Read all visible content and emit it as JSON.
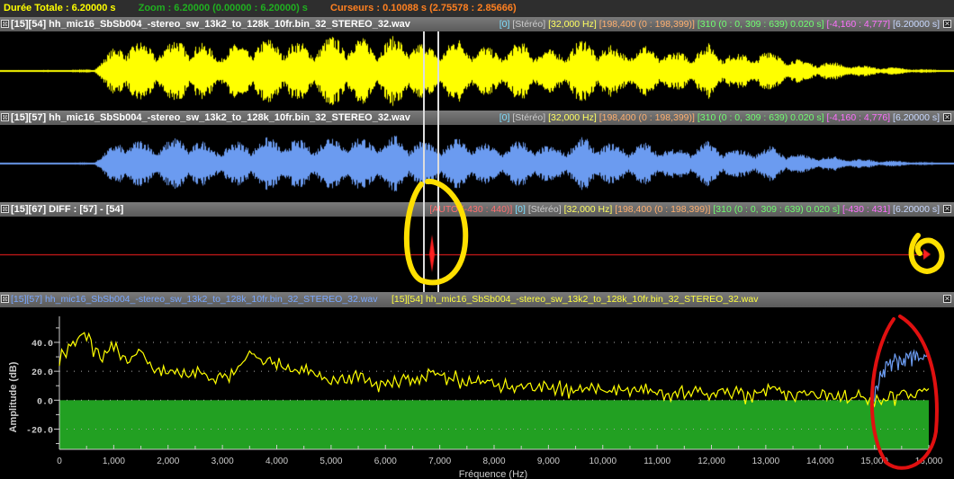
{
  "topbar": {
    "duration": "Durée Totale : 6.20000 s",
    "zoom": "Zoom : 6.20000 (0.00000 : 6.20000) s",
    "cursors": "Curseurs : 0.10088 s (2.75578 : 2.85666)"
  },
  "colors": {
    "track1": "#ffff00",
    "track2": "#6b9bf0",
    "diff": "#ff2020",
    "fill": "#22a022",
    "annotation_yellow": "#ffe000",
    "annotation_red": "#e01010"
  },
  "tracks": [
    {
      "title": "[15][54] hh_mic16_SbSb004_-stereo_sw_13k2_to_128k_10fr.bin_32_STEREO_32.wav",
      "info": {
        "chan": "[0]",
        "mode": "[Stéréo]",
        "rate": "[32,000 Hz]",
        "samples": "[198,400 (0 : 198,399)]",
        "frames": "[310 (0 : 0, 309 : 639) 0.020 s]",
        "range": "[-4,160 : 4,777]",
        "dur": "[6.20000 s]"
      },
      "envelope": [
        0.02,
        0.03,
        0.03,
        0.05,
        0.9,
        0.7,
        0.95,
        0.6,
        0.8,
        0.9,
        0.75,
        1.0,
        0.85,
        0.95,
        0.7,
        0.9,
        0.6,
        0.8,
        0.55,
        0.9,
        0.65,
        0.7,
        0.5,
        0.75,
        0.45,
        0.6,
        0.3,
        0.25,
        0.15,
        0.1,
        0.05,
        0.03
      ]
    },
    {
      "title": "[15][57] hh_mic16_SbSb004_-stereo_sw_13k2_to_128k_10fr.bin_32_STEREO_32.wav",
      "info": {
        "chan": "[0]",
        "mode": "[Stéréo]",
        "rate": "[32,000 Hz]",
        "samples": "[198,400 (0 : 198,399)]",
        "frames": "[310 (0 : 0, 309 : 639) 0.020 s]",
        "range": "[-4,160 : 4,776]",
        "dur": "[6.20000 s]"
      },
      "envelope": [
        0.02,
        0.03,
        0.03,
        0.05,
        0.9,
        0.7,
        0.95,
        0.6,
        0.8,
        0.9,
        0.75,
        1.0,
        0.85,
        0.95,
        0.7,
        0.9,
        0.6,
        0.8,
        0.55,
        0.9,
        0.65,
        0.7,
        0.5,
        0.75,
        0.45,
        0.6,
        0.3,
        0.25,
        0.15,
        0.1,
        0.05,
        0.03
      ]
    },
    {
      "title": "[15][67] DIFF : [57] - [54]",
      "info": {
        "auto": "[AUTO (-430 : 440)]",
        "chan": "[0]",
        "mode": "[Stéréo]",
        "rate": "[32,000 Hz]",
        "samples": "[198,400 (0 : 198,399)]",
        "frames": "[310 (0 : 0, 309 : 639) 0.020 s]",
        "range": "[-430 : 431]",
        "dur": "[6.20000 s]"
      }
    }
  ],
  "spectrum": {
    "label_a": "[15][57] hh_mic16_SbSb004_-stereo_sw_13k2_to_128k_10fr.bin_32_STEREO_32.wav",
    "label_b": "[15][54] hh_mic16_SbSb004_-stereo_sw_13k2_to_128k_10fr.bin_32_STEREO_32.wav"
  },
  "chart_data": {
    "type": "line",
    "xlabel": "Fréquence (Hz)",
    "ylabel": "Amplitude (dB)",
    "xlim": [
      0,
      16000
    ],
    "ylim": [
      -34,
      58
    ],
    "xticks": [
      "0",
      "1,000",
      "2,000",
      "3,000",
      "4,000",
      "5,000",
      "6,000",
      "7,000",
      "8,000",
      "9,000",
      "10,000",
      "11,000",
      "12,000",
      "13,000",
      "14,000",
      "15,000",
      "16,000"
    ],
    "yticks": [
      "40.0",
      "20.0",
      "0.0",
      "-20.0"
    ],
    "fill_below": 0,
    "series": [
      {
        "color": "#ffff00",
        "x_step": 250,
        "values": [
          30,
          40,
          45,
          30,
          38,
          28,
          32,
          22,
          22,
          18,
          20,
          15,
          17,
          22,
          32,
          28,
          25,
          22,
          20,
          18,
          14,
          15,
          18,
          14,
          13,
          16,
          15,
          20,
          18,
          16,
          15,
          12,
          14,
          10,
          12,
          10,
          12,
          9,
          8,
          10,
          8,
          5,
          8,
          7,
          6,
          3,
          6,
          8,
          4,
          6,
          5,
          3,
          6,
          8,
          4,
          5,
          3,
          6,
          2,
          4,
          -2,
          4,
          6,
          5,
          8
        ]
      },
      {
        "color": "#6b9bf0",
        "x": [
          15000,
          15125,
          15250,
          15375,
          15500,
          15625,
          15750,
          15875,
          16000
        ],
        "values": [
          5,
          18,
          28,
          30,
          27,
          32,
          29,
          31,
          33
        ]
      }
    ]
  }
}
